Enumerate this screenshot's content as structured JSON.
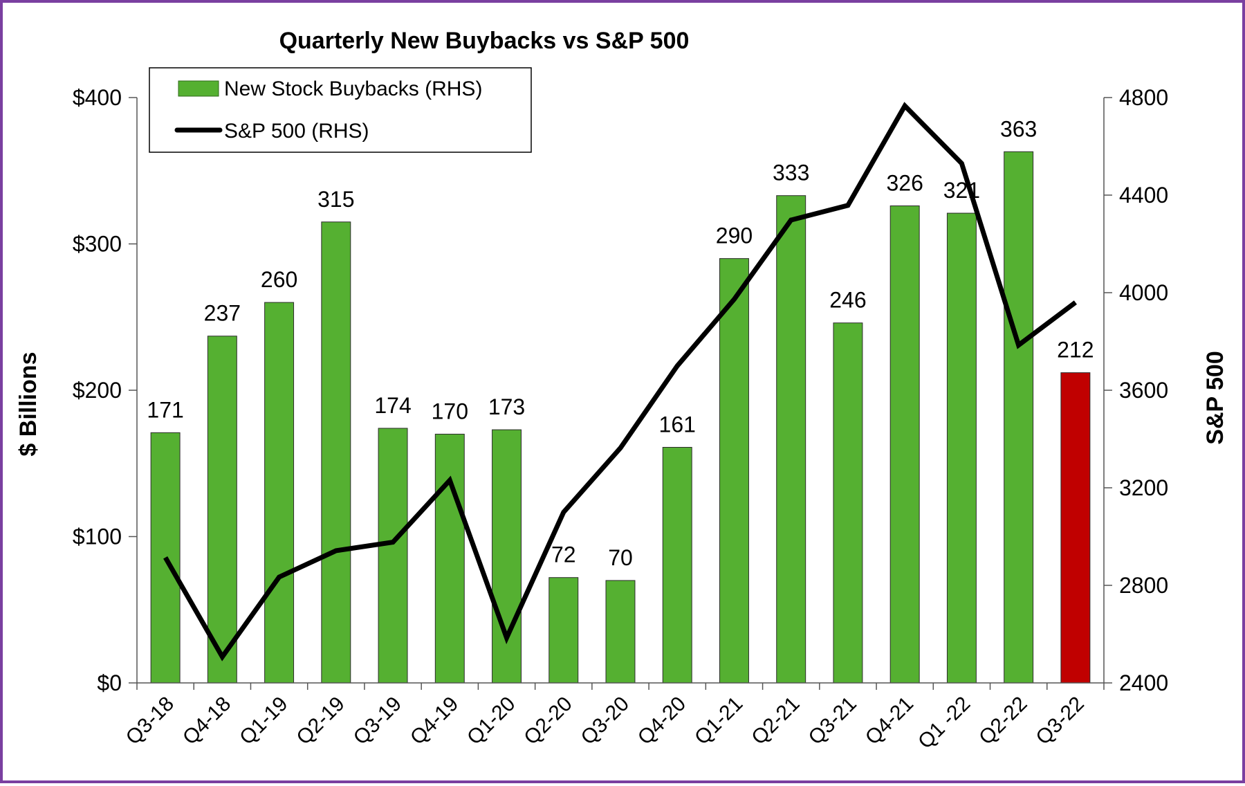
{
  "chart_data": {
    "type": "bar",
    "title": "Quarterly New Buybacks vs S&P 500",
    "ylabel": "$ Billions",
    "y2label": "S&P 500",
    "categories": [
      "Q3-18",
      "Q4-18",
      "Q1-19",
      "Q2-19",
      "Q3-19",
      "Q4-19",
      "Q1-20",
      "Q2-20",
      "Q3-20",
      "Q4-20",
      "Q1-21",
      "Q2-21",
      "Q3-21",
      "Q4-21",
      "Q1 -22",
      "Q2-22",
      "Q3-22"
    ],
    "ylim": [
      0,
      400
    ],
    "y_ticks": [
      "$0",
      "$100",
      "$200",
      "$300",
      "$400"
    ],
    "y_tick_values": [
      0,
      100,
      200,
      300,
      400
    ],
    "y2lim": [
      2400,
      4800
    ],
    "y2_ticks": [
      "2400",
      "2800",
      "3200",
      "3600",
      "4000",
      "4400",
      "4800"
    ],
    "y2_tick_values": [
      2400,
      2800,
      3200,
      3600,
      4000,
      4400,
      4800
    ],
    "grid": false,
    "legend_position": "top-left",
    "series": [
      {
        "name": "New Stock Buybacks (RHS)",
        "type": "bar",
        "axis": "left",
        "color": "#55b031",
        "highlight_color": "#c00000",
        "highlight_index": 16,
        "values": [
          171,
          237,
          260,
          315,
          174,
          170,
          173,
          72,
          70,
          161,
          290,
          333,
          246,
          326,
          321,
          363,
          212
        ],
        "labels": [
          "171",
          "237",
          "260",
          "315",
          "174",
          "170",
          "173",
          "72",
          "70",
          "161",
          "290",
          "333",
          "246",
          "326",
          "321",
          "363",
          "212"
        ]
      },
      {
        "name": "S&P 500 (RHS)",
        "type": "line",
        "axis": "right",
        "color": "#000000",
        "values": [
          2914,
          2507,
          2834,
          2942,
          2977,
          3231,
          2585,
          3100,
          3363,
          3700,
          3973,
          4298,
          4358,
          4766,
          4530,
          3785,
          3960
        ]
      }
    ]
  }
}
